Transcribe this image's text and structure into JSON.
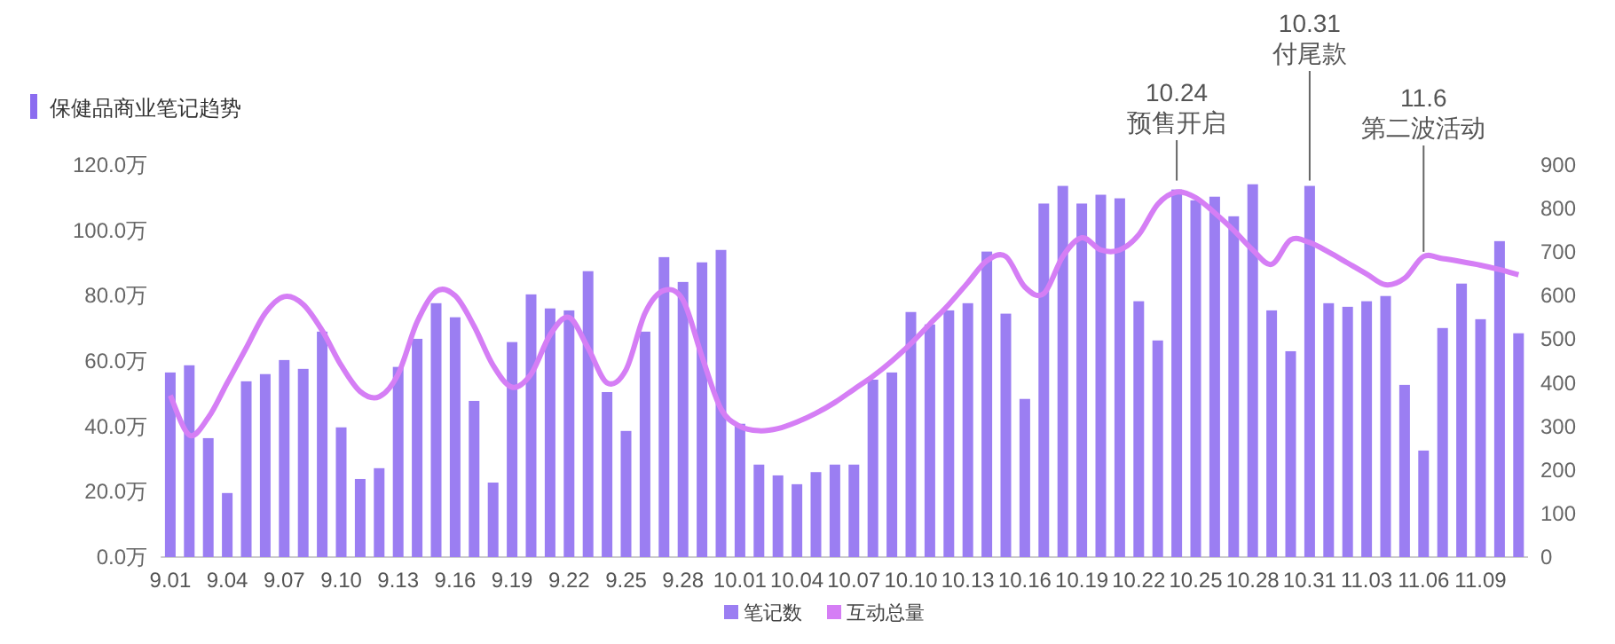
{
  "chart_data": {
    "type": "bar",
    "title": "保健品商业笔记趋势",
    "categories": [
      "9.01",
      null,
      null,
      "9.04",
      null,
      null,
      "9.07",
      null,
      null,
      "9.10",
      null,
      null,
      "9.13",
      null,
      null,
      "9.16",
      null,
      null,
      "9.19",
      null,
      null,
      "9.22",
      null,
      null,
      "9.25",
      null,
      null,
      "9.28",
      null,
      null,
      "10.01",
      null,
      null,
      "10.04",
      null,
      null,
      "10.07",
      null,
      null,
      "10.10",
      null,
      null,
      "10.13",
      null,
      null,
      "10.16",
      null,
      null,
      "10.19",
      null,
      null,
      "10.22",
      null,
      null,
      "10.25",
      null,
      null,
      "10.28",
      null,
      null,
      "10.31",
      null,
      null,
      "11.03",
      null,
      null,
      "11.06",
      null,
      null,
      "11.09",
      null,
      null
    ],
    "series": [
      {
        "name": "笔记数",
        "color": "#9b7ef2",
        "values": [
          56.5,
          58.7,
          36.4,
          19.6,
          53.8,
          56,
          60.3,
          57.6,
          69,
          39.7,
          23.9,
          27.2,
          58.2,
          66.8,
          77.7,
          73.4,
          47.8,
          22.8,
          65.8,
          80.4,
          76.1,
          75.5,
          87.5,
          50.5,
          38.6,
          69,
          91.8,
          84.2,
          90.2,
          94,
          40.8,
          28.3,
          25,
          22.3,
          26,
          28.3,
          28.3,
          54.3,
          56.5,
          75,
          71.2,
          75.5,
          77.7,
          93.5,
          74.5,
          48.4,
          108.2,
          113.6,
          108.2,
          110.9,
          109.8,
          78.3,
          66.3,
          112.5,
          109.2,
          110.3,
          104.3,
          114.1,
          75.5,
          63,
          113.6,
          77.7,
          76.6,
          78.3,
          79.9,
          52.7,
          32.6,
          70.1,
          83.7,
          72.8,
          96.7,
          68.5
        ]
      },
      {
        "name": "互动总量",
        "type": "line",
        "axis": "y2",
        "color": "#d57ef5",
        "values": [
          371,
          280,
          320,
          400,
          480,
          560,
          598,
          580,
          520,
          440,
          380,
          368,
          420,
          540,
          610,
          600,
          530,
          440,
          390,
          420,
          510,
          550,
          480,
          400,
          430,
          560,
          612,
          590,
          460,
          340,
          300,
          290,
          295,
          310,
          330,
          355,
          385,
          415,
          450,
          490,
          535,
          580,
          630,
          680,
          690,
          620,
          605,
          690,
          733,
          705,
          705,
          740,
          810,
          838,
          825,
          790,
          750,
          705,
          672,
          728,
          722,
          700,
          675,
          650,
          625,
          640,
          690,
          685,
          678,
          670,
          660,
          648
        ]
      }
    ],
    "ylim": [
      0,
      120
    ],
    "yticks": [
      {
        "value": 0,
        "label": "0.0万"
      },
      {
        "value": 20,
        "label": "20.0万"
      },
      {
        "value": 40,
        "label": "40.0万"
      },
      {
        "value": 60,
        "label": "60.0万"
      },
      {
        "value": 80,
        "label": "80.0万"
      },
      {
        "value": 100,
        "label": "100.0万"
      },
      {
        "value": 120,
        "label": "120.0万"
      }
    ],
    "y2lim": [
      0,
      900
    ],
    "y2ticks": [
      0,
      100,
      200,
      300,
      400,
      500,
      600,
      700,
      800,
      900
    ],
    "legend": "bottom",
    "annotations": [
      {
        "text": "10.24 预售开启",
        "y": 113.6
      },
      {
        "text": "10.31 付尾款",
        "y": 113.6
      },
      {
        "text": "11.6 第二波活动",
        "y": 91.8
      }
    ]
  }
}
